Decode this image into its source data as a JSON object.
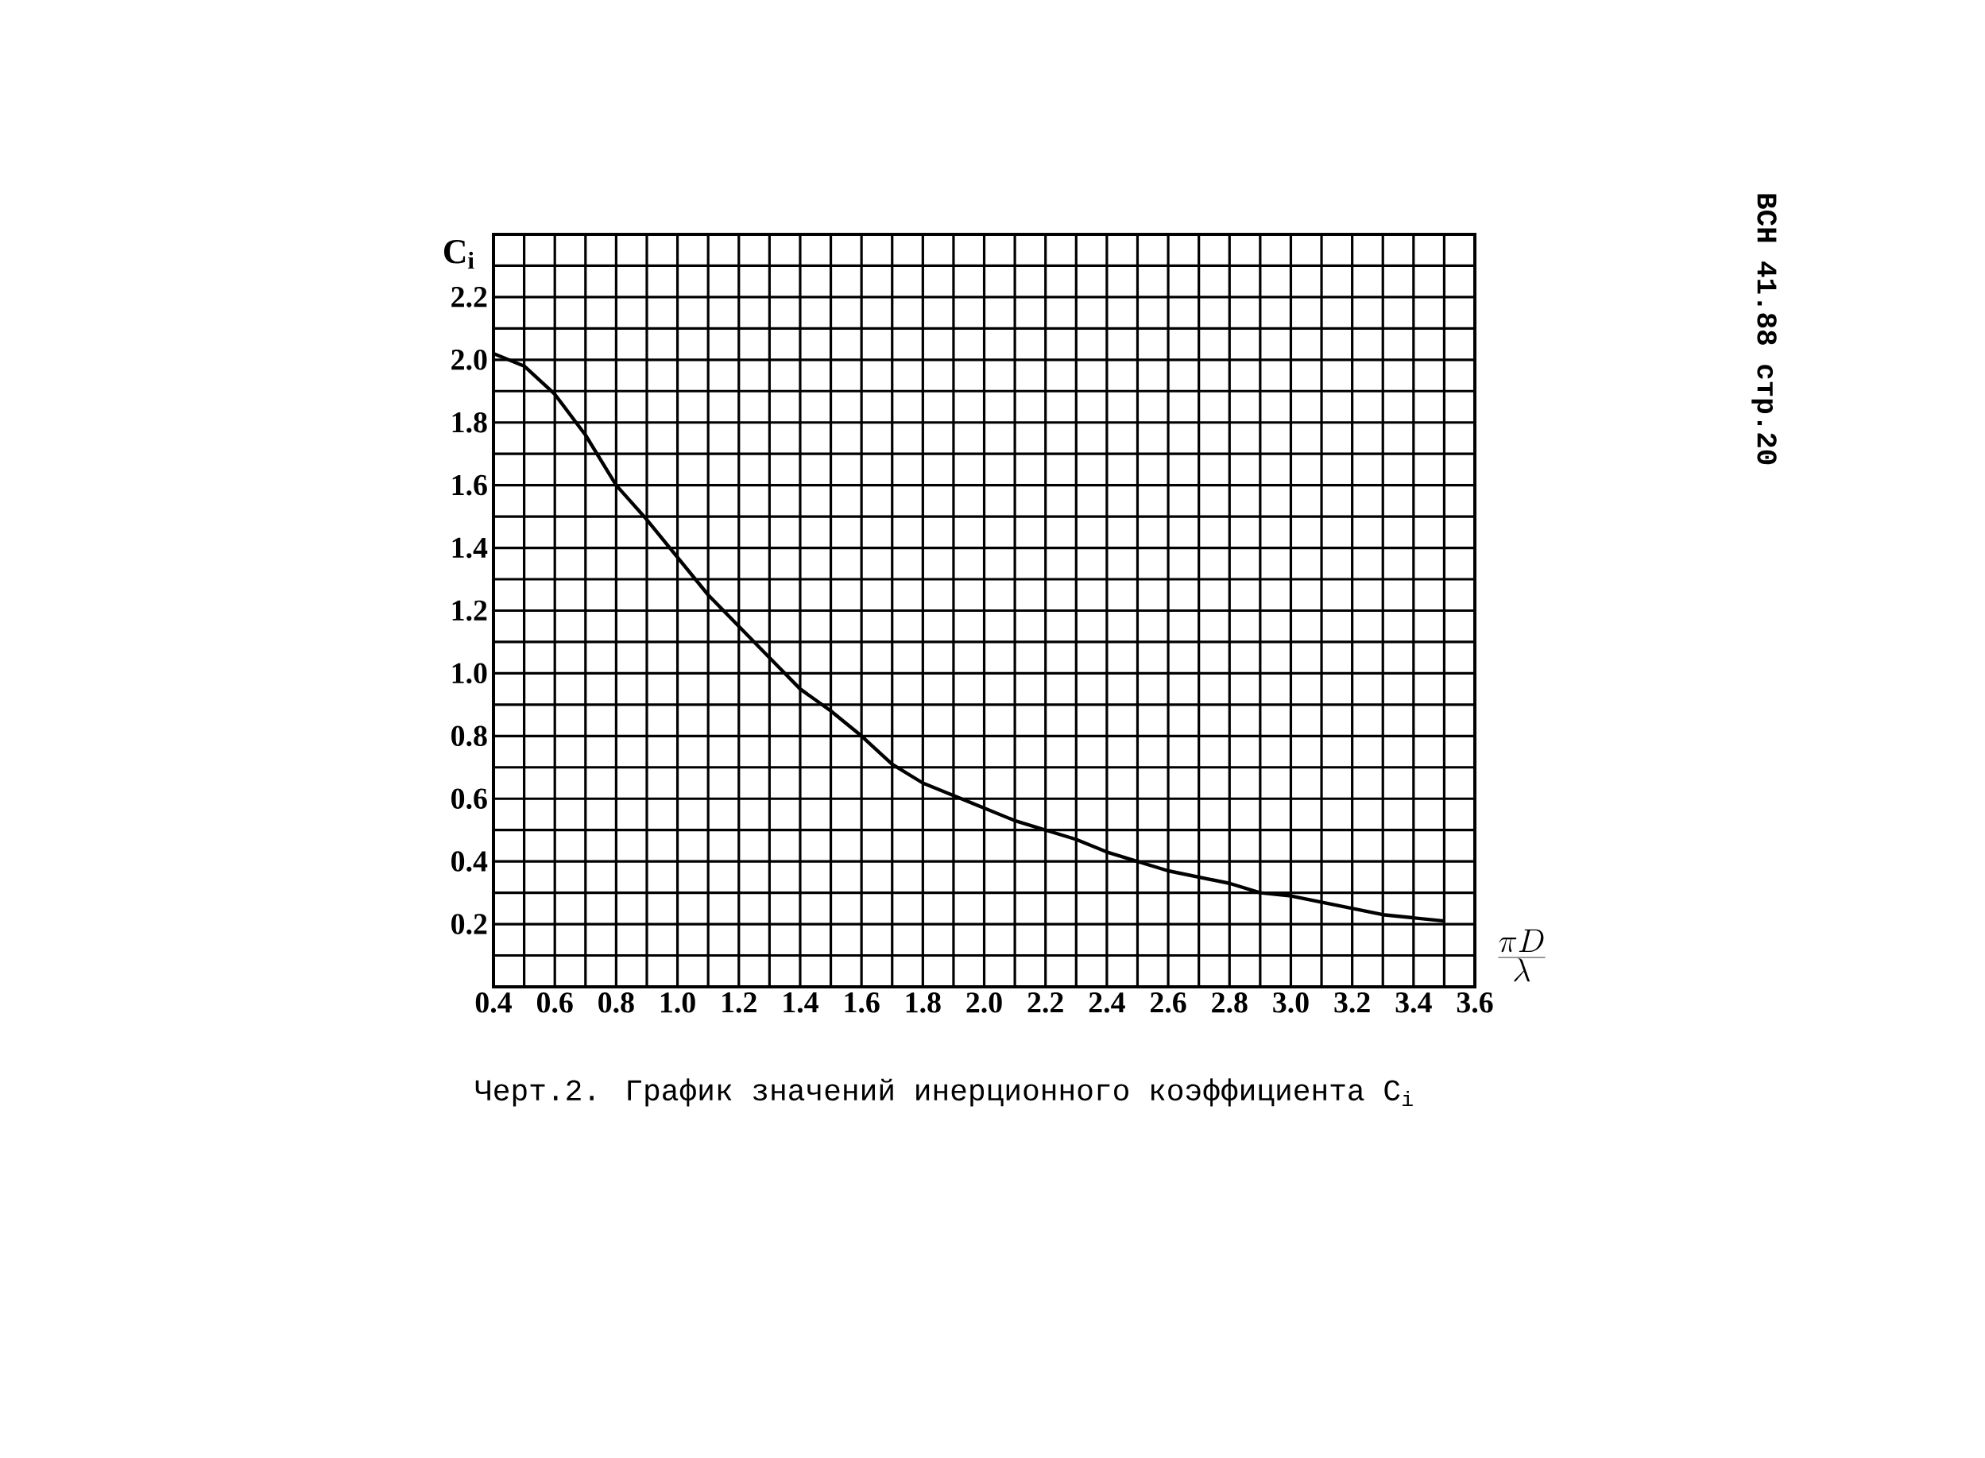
{
  "chart_data": {
    "type": "line",
    "xlabel": "\\frac{\\pi D}{\\lambda}",
    "ylabel": "C$_{i}$",
    "annotations": [
      "Черт.2. График значений инерционного коэффициента C$_{i}$",
      "ВСН 41.88 стр.20"
    ],
    "series": [
      {
        "color": "#000000",
        "x": [
          0.4,
          0.5,
          0.6,
          0.7,
          0.8,
          0.9,
          1.0,
          1.1,
          1.2,
          1.3,
          1.4,
          1.5,
          1.6,
          1.7,
          1.8,
          1.9,
          2.0,
          2.1,
          2.2,
          2.3,
          2.4,
          2.5,
          2.6,
          2.7,
          2.8,
          2.9,
          3.0,
          3.1,
          3.2,
          3.3,
          3.4,
          3.5
        ],
        "values": [
          2.02,
          1.98,
          1.89,
          1.76,
          1.6,
          1.49,
          1.37,
          1.25,
          1.15,
          1.05,
          0.95,
          0.88,
          0.8,
          0.71,
          0.65,
          0.61,
          0.57,
          0.53,
          0.5,
          0.47,
          0.43,
          0.4,
          0.37,
          0.35,
          0.33,
          0.3,
          0.29,
          0.27,
          0.25,
          0.23,
          0.22,
          0.21
        ]
      }
    ],
    "xlim": [
      0.4,
      3.6
    ],
    "ylim": [
      0,
      2.4
    ],
    "xticks": [
      0.4,
      {
        "value": 0.5,
        "label": null
      },
      0.6,
      {
        "value": 0.7,
        "label": null
      },
      0.8,
      {
        "value": 0.9,
        "label": null
      },
      {
        "value": 1,
        "label": "1.0"
      },
      {
        "value": 1.1,
        "label": null
      },
      1.2,
      {
        "value": 1.3,
        "label": null
      },
      1.4,
      {
        "value": 1.5,
        "label": null
      },
      1.6,
      {
        "value": 1.7,
        "label": null
      },
      1.8,
      {
        "value": 1.9,
        "label": null
      },
      {
        "value": 2,
        "label": "2.0"
      },
      {
        "value": 2.1,
        "label": null
      },
      2.2,
      {
        "value": 2.3,
        "label": null
      },
      2.4,
      {
        "value": 2.5,
        "label": null
      },
      2.6,
      {
        "value": 2.7,
        "label": null
      },
      2.8,
      {
        "value": 2.9,
        "label": null
      },
      {
        "value": 3,
        "label": "3.0"
      },
      {
        "value": 3.1,
        "label": null
      },
      3.2,
      {
        "value": 3.3,
        "label": null
      },
      3.4,
      {
        "value": 3.5,
        "label": null
      },
      3.6
    ],
    "yticks": [
      {
        "value": 0,
        "label": null
      },
      {
        "value": 0.1,
        "label": null
      },
      0.2,
      {
        "value": 0.3,
        "label": null
      },
      0.4,
      {
        "value": 0.5,
        "label": null
      },
      0.6,
      {
        "value": 0.7,
        "label": null
      },
      0.8,
      {
        "value": 0.9,
        "label": null
      },
      {
        "value": 1,
        "label": "1.0"
      },
      {
        "value": 1.1,
        "label": null
      },
      1.2,
      {
        "value": 1.3,
        "label": null
      },
      1.4,
      {
        "value": 1.5,
        "label": null
      },
      1.6,
      {
        "value": 1.7,
        "label": null
      },
      1.8,
      {
        "value": 1.9,
        "label": null
      },
      {
        "value": 2,
        "label": "2.0"
      },
      {
        "value": 2.1,
        "label": null
      },
      2.2,
      {
        "value": 2.3,
        "label": null
      }
    ],
    "grid": true,
    "marker": "none",
    "line_style": "solid"
  }
}
